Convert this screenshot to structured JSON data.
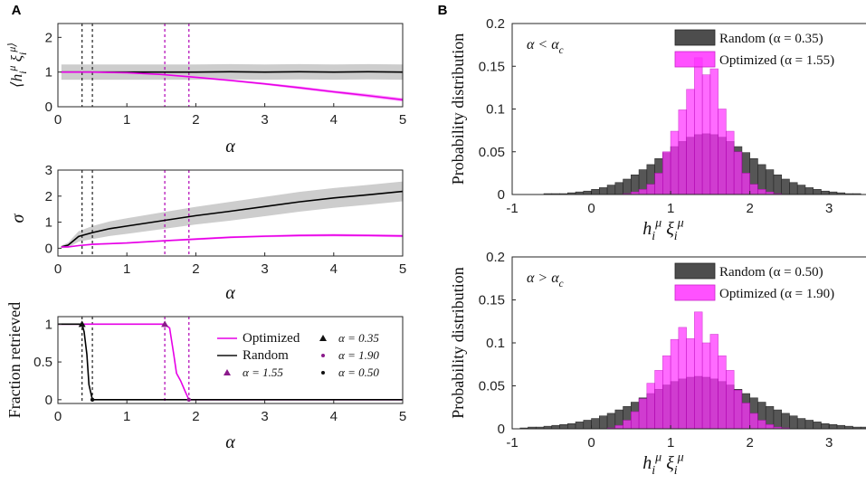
{
  "colors": {
    "magenta": "#e600e6",
    "magenta_fill": "#ff33ff",
    "dark_gray": "#4d4d4d",
    "gray_band": "#c8c8c8",
    "black": "#000000",
    "overlap": "#b000b4"
  },
  "panel_labels": {
    "a": "A",
    "b": "B"
  },
  "chart_data": [
    {
      "id": "a1",
      "type": "line",
      "ylabel": "⟨h_i^μ ξ_i^μ⟩",
      "xlabel": "α",
      "xlim": [
        0,
        5
      ],
      "ylim": [
        0,
        2.4
      ],
      "xticks": [
        "0",
        "1",
        "2",
        "3",
        "4",
        "5"
      ],
      "yticks": [
        "0",
        "1",
        "2"
      ],
      "vlines": [
        {
          "x": 0.35,
          "color": "black"
        },
        {
          "x": 0.5,
          "color": "black"
        },
        {
          "x": 1.55,
          "color": "magenta"
        },
        {
          "x": 1.9,
          "color": "magenta"
        }
      ],
      "series": [
        {
          "name": "Random",
          "x": [
            0.05,
            0.5,
            1,
            1.5,
            2,
            2.5,
            3,
            3.5,
            4,
            4.5,
            5
          ],
          "y": [
            1.0,
            1.0,
            1.0,
            1.0,
            1.0,
            1.01,
            1.0,
            1.01,
            1.0,
            1.01,
            1.0
          ],
          "band": [
            0.22,
            0.22,
            0.22,
            0.22,
            0.22,
            0.22,
            0.22,
            0.22,
            0.22,
            0.22,
            0.22
          ]
        },
        {
          "name": "Optimized",
          "x": [
            0.05,
            0.5,
            1,
            1.5,
            2,
            2.5,
            3,
            3.5,
            4,
            4.5,
            5
          ],
          "y": [
            1.0,
            1.0,
            0.98,
            0.93,
            0.85,
            0.76,
            0.66,
            0.55,
            0.43,
            0.32,
            0.2
          ],
          "band": [
            0.0,
            0.01,
            0.02,
            0.02,
            0.03,
            0.03,
            0.03,
            0.04,
            0.04,
            0.05,
            0.05
          ]
        }
      ]
    },
    {
      "id": "a2",
      "type": "line",
      "ylabel": "σ",
      "xlabel": "α",
      "xlim": [
        0,
        5
      ],
      "ylim": [
        -0.3,
        3
      ],
      "xticks": [
        "0",
        "1",
        "2",
        "3",
        "4",
        "5"
      ],
      "yticks": [
        "0",
        "1",
        "2",
        "3"
      ],
      "vlines": [
        {
          "x": 0.35,
          "color": "black"
        },
        {
          "x": 0.5,
          "color": "black"
        },
        {
          "x": 1.55,
          "color": "magenta"
        },
        {
          "x": 1.9,
          "color": "magenta"
        }
      ],
      "series": [
        {
          "name": "Random",
          "x": [
            0.05,
            0.15,
            0.3,
            0.5,
            0.75,
            1,
            1.5,
            2,
            2.5,
            3,
            3.5,
            4,
            4.5,
            5
          ],
          "y": [
            0.05,
            0.12,
            0.45,
            0.6,
            0.75,
            0.85,
            1.05,
            1.25,
            1.42,
            1.6,
            1.78,
            1.93,
            2.05,
            2.18
          ],
          "band": [
            0.05,
            0.1,
            0.2,
            0.25,
            0.28,
            0.3,
            0.32,
            0.34,
            0.36,
            0.37,
            0.38,
            0.38,
            0.38,
            0.38
          ]
        },
        {
          "name": "Optimized",
          "x": [
            0.05,
            0.15,
            0.3,
            0.5,
            1,
            1.5,
            2,
            2.5,
            3,
            3.5,
            4,
            4.5,
            5
          ],
          "y": [
            0.05,
            0.05,
            0.1,
            0.15,
            0.2,
            0.28,
            0.35,
            0.42,
            0.46,
            0.49,
            0.5,
            0.49,
            0.47
          ],
          "band": [
            0.02,
            0.02,
            0.02,
            0.03,
            0.03,
            0.03,
            0.04,
            0.04,
            0.04,
            0.05,
            0.05,
            0.05,
            0.05
          ]
        }
      ]
    },
    {
      "id": "a3",
      "type": "line",
      "ylabel": "Fraction retrieved",
      "xlabel": "α",
      "xlim": [
        0,
        5
      ],
      "ylim": [
        -0.05,
        1.1
      ],
      "xticks": [
        "0",
        "1",
        "2",
        "3",
        "4",
        "5"
      ],
      "yticks": [
        "0",
        "0.5",
        "1"
      ],
      "vlines": [
        {
          "x": 0.35,
          "color": "black"
        },
        {
          "x": 0.5,
          "color": "black"
        },
        {
          "x": 1.55,
          "color": "magenta"
        },
        {
          "x": 1.9,
          "color": "magenta"
        }
      ],
      "series": [
        {
          "name": "Optimized",
          "x": [
            0,
            1.55,
            1.62,
            1.68,
            1.72,
            1.78,
            1.85,
            1.9,
            5
          ],
          "y": [
            1,
            1,
            0.95,
            0.6,
            0.35,
            0.25,
            0.1,
            0,
            0
          ]
        },
        {
          "name": "Random",
          "x": [
            0,
            0.35,
            0.38,
            0.42,
            0.45,
            0.5,
            5
          ],
          "y": [
            1,
            1,
            0.9,
            0.6,
            0.2,
            0,
            0
          ]
        }
      ],
      "markers": [
        {
          "label": "α = 0.35",
          "x": 0.35,
          "y": 1,
          "shape": "triangle",
          "color": "black"
        },
        {
          "label": "α = 1.55",
          "x": 1.55,
          "y": 1,
          "shape": "triangle",
          "color": "magenta"
        },
        {
          "label": "α = 1.90",
          "x": 1.9,
          "y": 0,
          "shape": "dot",
          "color": "magenta"
        },
        {
          "label": "α = 0.50",
          "x": 0.5,
          "y": 0,
          "shape": "dot",
          "color": "black"
        }
      ],
      "legend": [
        {
          "label": "Optimized",
          "kind": "line",
          "color": "magenta"
        },
        {
          "label": "α = 0.35",
          "kind": "triangle",
          "color": "black"
        },
        {
          "label": "Random",
          "kind": "line",
          "color": "black"
        },
        {
          "label": "α = 1.90",
          "kind": "dot",
          "color": "magenta"
        },
        {
          "label": "α = 1.55",
          "kind": "triangle",
          "color": "magenta"
        },
        {
          "label": "α = 0.50",
          "kind": "dot",
          "color": "black"
        }
      ]
    },
    {
      "id": "b1",
      "type": "bar",
      "annotation": "α < α_c",
      "ylabel": "Probability distribution",
      "xlabel": "h_i^μ ξ_i^μ",
      "xlim": [
        -1,
        3.5
      ],
      "ylim": [
        0,
        0.2
      ],
      "xticks": [
        "-1",
        "0",
        "1",
        "2",
        "3"
      ],
      "yticks": [
        "0",
        "0.05",
        "0.1",
        "0.15",
        "0.2"
      ],
      "bin_start": -0.6,
      "bin_width": 0.1,
      "series": [
        {
          "name": "Random (α = 0.35)",
          "values": [
            0.001,
            0.001,
            0.001,
            0.002,
            0.003,
            0.004,
            0.006,
            0.008,
            0.011,
            0.014,
            0.018,
            0.023,
            0.029,
            0.035,
            0.042,
            0.049,
            0.056,
            0.062,
            0.067,
            0.07,
            0.071,
            0.07,
            0.067,
            0.062,
            0.056,
            0.049,
            0.042,
            0.035,
            0.029,
            0.023,
            0.018,
            0.014,
            0.011,
            0.008,
            0.006,
            0.004,
            0.003,
            0.002,
            0.001,
            0.001
          ]
        },
        {
          "name": "Optimized (α = 1.55)",
          "values": [
            0,
            0,
            0,
            0,
            0,
            0,
            0,
            0,
            0,
            0,
            0.001,
            0.003,
            0.006,
            0.012,
            0.025,
            0.05,
            0.074,
            0.099,
            0.123,
            0.16,
            0.14,
            0.147,
            0.1,
            0.074,
            0.05,
            0.025,
            0.012,
            0.006,
            0.003,
            0.001,
            0,
            0,
            0,
            0,
            0,
            0,
            0,
            0,
            0,
            0
          ]
        }
      ]
    },
    {
      "id": "b2",
      "type": "bar",
      "annotation": "α > α_c",
      "ylabel": "Probability distribution",
      "xlabel": "h_i^μ ξ_i^μ",
      "xlim": [
        -1,
        3.5
      ],
      "ylim": [
        0,
        0.2
      ],
      "xticks": [
        "-1",
        "0",
        "1",
        "2",
        "3"
      ],
      "yticks": [
        "0",
        "0.05",
        "0.1",
        "0.15",
        "0.2"
      ],
      "bin_start": -0.9,
      "bin_width": 0.1,
      "series": [
        {
          "name": "Random (α = 0.50)",
          "values": [
            0.001,
            0.002,
            0.002,
            0.003,
            0.004,
            0.005,
            0.006,
            0.008,
            0.01,
            0.012,
            0.015,
            0.018,
            0.022,
            0.026,
            0.031,
            0.036,
            0.041,
            0.046,
            0.051,
            0.055,
            0.058,
            0.06,
            0.061,
            0.06,
            0.058,
            0.055,
            0.051,
            0.046,
            0.041,
            0.036,
            0.031,
            0.026,
            0.022,
            0.018,
            0.015,
            0.012,
            0.01,
            0.008,
            0.006,
            0.005,
            0.004,
            0.003,
            0.002,
            0.002,
            0.001
          ]
        },
        {
          "name": "Optimized (α = 1.90)",
          "values": [
            0,
            0,
            0,
            0,
            0,
            0,
            0,
            0,
            0,
            0,
            0,
            0.001,
            0.004,
            0.01,
            0.02,
            0.035,
            0.053,
            0.068,
            0.085,
            0.104,
            0.118,
            0.105,
            0.136,
            0.1,
            0.11,
            0.085,
            0.068,
            0.045,
            0.03,
            0.018,
            0.01,
            0.005,
            0.002,
            0.001,
            0,
            0,
            0,
            0,
            0,
            0,
            0,
            0,
            0,
            0,
            0
          ]
        }
      ]
    }
  ]
}
